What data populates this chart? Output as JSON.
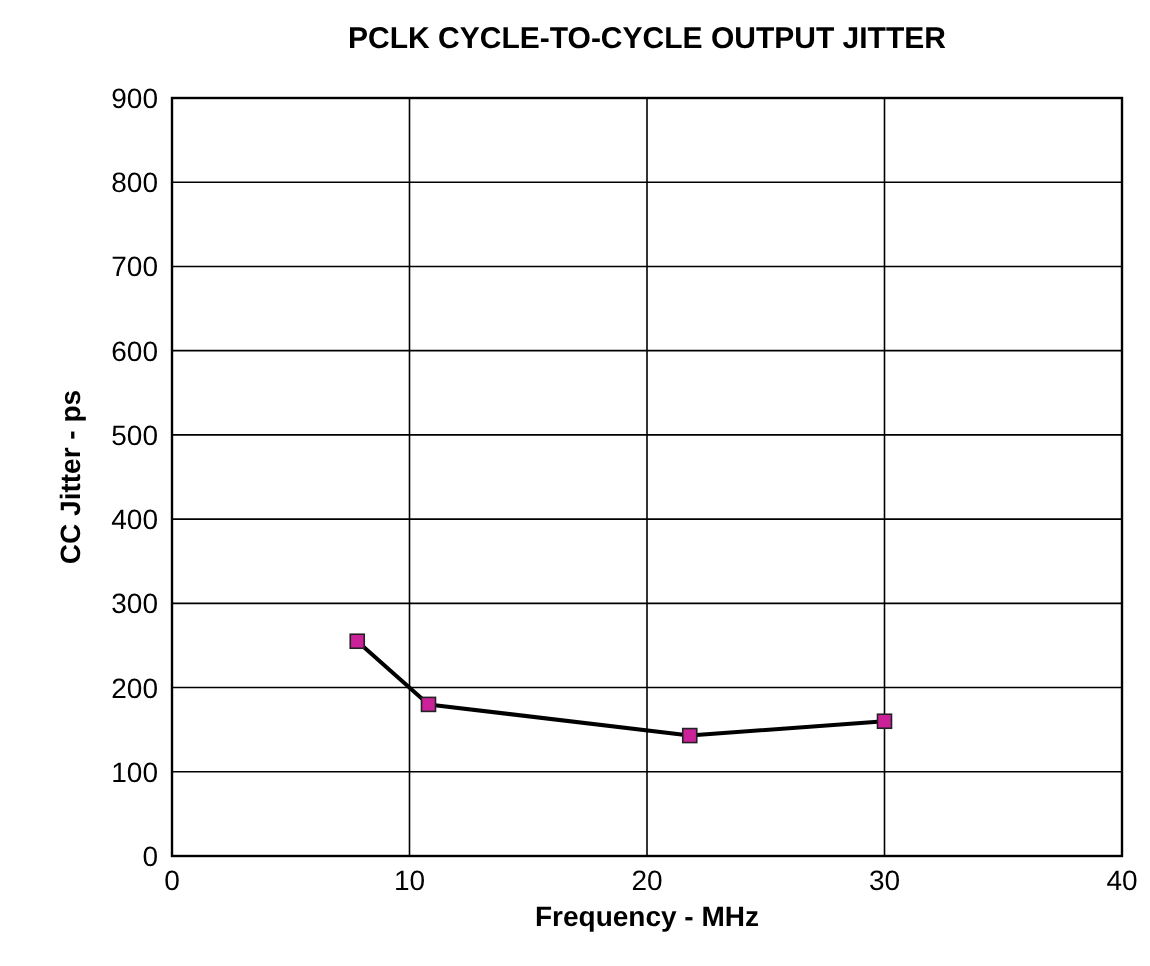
{
  "chart_data": {
    "type": "line",
    "title": "PCLK CYCLE-TO-CYCLE OUTPUT JITTER",
    "xlabel": "Frequency - MHz",
    "ylabel": "CC Jitter - ps",
    "x": [
      7.8,
      10.8,
      21.8,
      30
    ],
    "series": [
      {
        "color": "#cc2299",
        "values": [
          255,
          180,
          143,
          160
        ]
      }
    ],
    "xlim": [
      0,
      40
    ],
    "xticks": [
      0,
      10,
      20,
      30,
      40
    ],
    "ylim": [
      0,
      900
    ],
    "yticks": [
      0,
      100,
      200,
      300,
      400,
      500,
      600,
      700,
      800,
      900
    ],
    "grid": true,
    "marker": "square",
    "line_style": "solid"
  }
}
